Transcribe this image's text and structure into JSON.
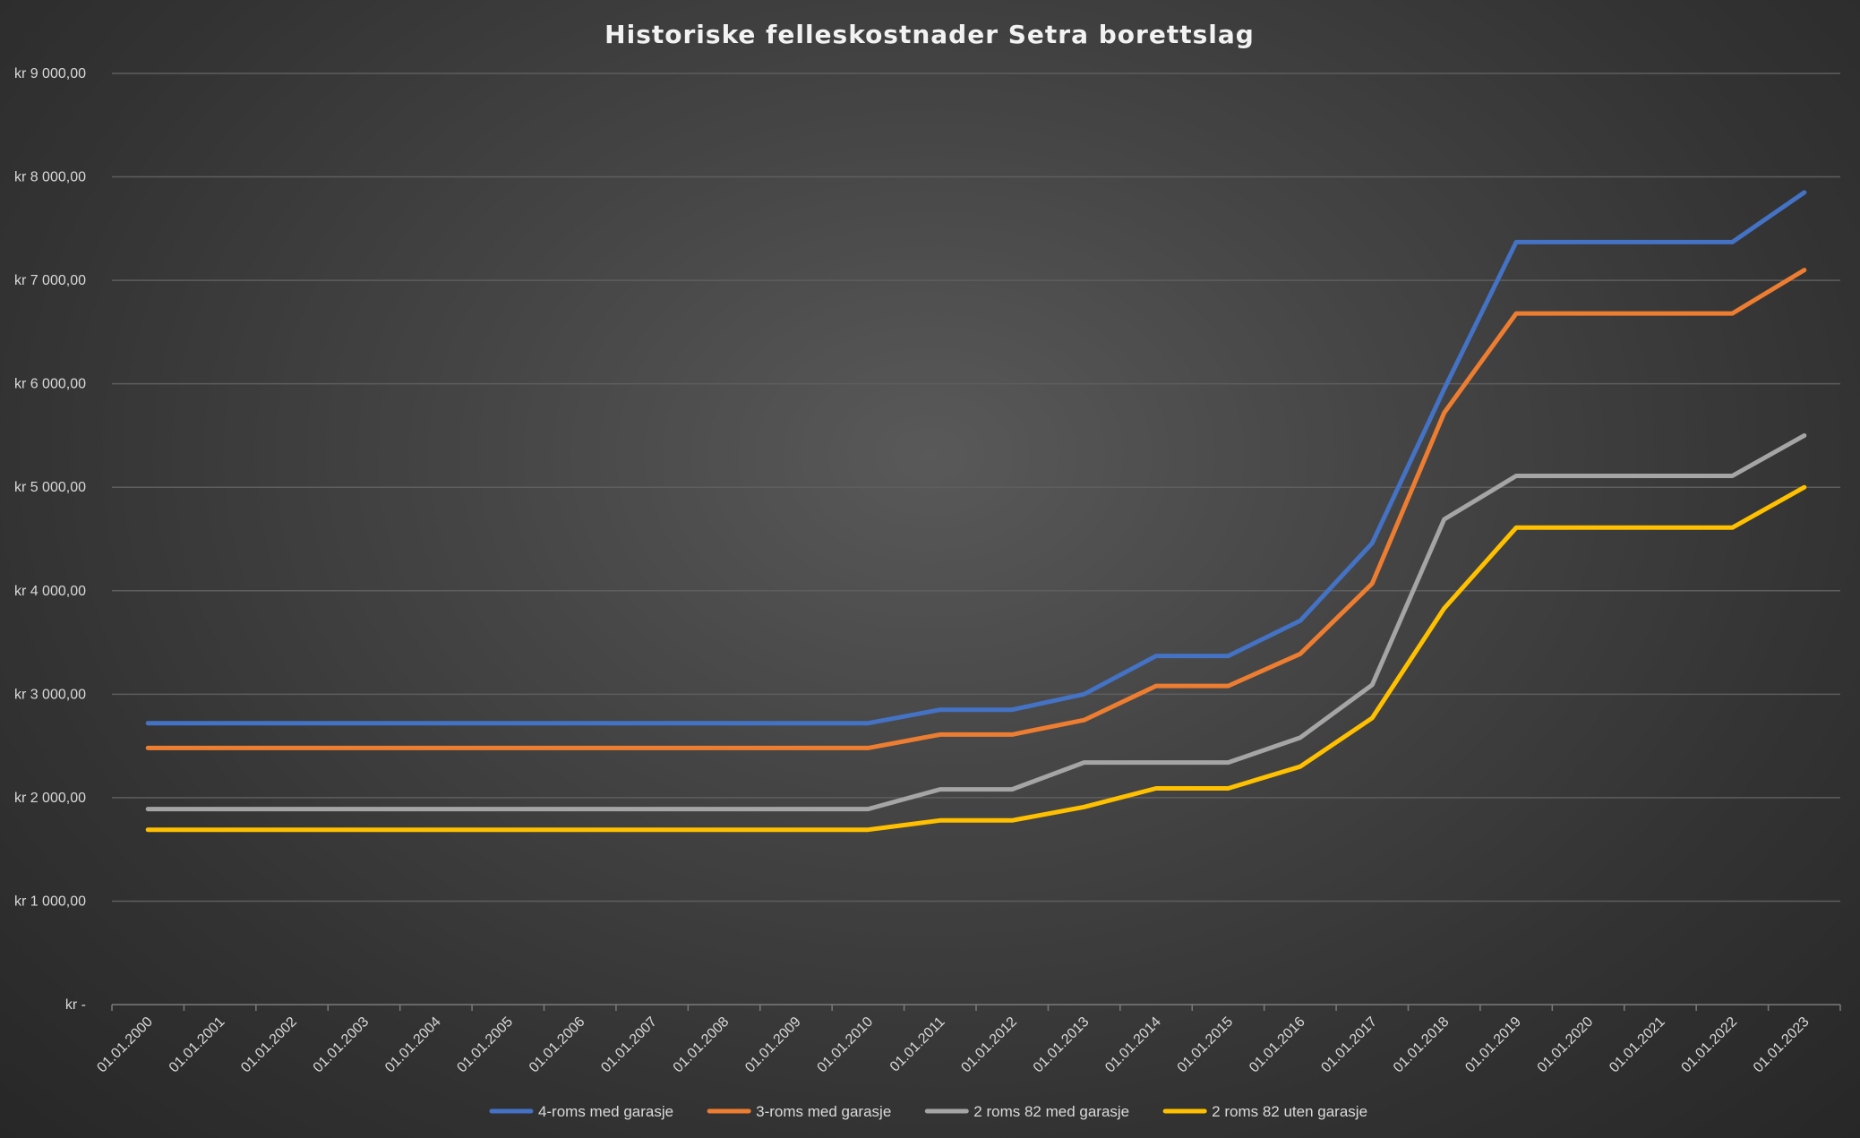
{
  "chart_data": {
    "type": "line",
    "title": "Historiske felleskostnader Setra borettslag",
    "xlabel": "",
    "ylabel": "",
    "categories": [
      "01.01.2000",
      "01.01.2001",
      "01.01.2002",
      "01.01.2003",
      "01.01.2004",
      "01.01.2005",
      "01.01.2006",
      "01.01.2007",
      "01.01.2008",
      "01.01.2009",
      "01.01.2010",
      "01.01.2011",
      "01.01.2012",
      "01.01.2013",
      "01.01.2014",
      "01.01.2015",
      "01.01.2016",
      "01.01.2017",
      "01.01.2018",
      "01.01.2019",
      "01.01.2020",
      "01.01.2021",
      "01.01.2022",
      "01.01.2023"
    ],
    "ylim": [
      0,
      9000
    ],
    "yticks": [
      0,
      1000,
      2000,
      3000,
      4000,
      5000,
      6000,
      7000,
      8000,
      9000
    ],
    "ytick_labels": [
      "kr -",
      "kr 1 000,00",
      "kr 2 000,00",
      "kr 3 000,00",
      "kr 4 000,00",
      "kr 5 000,00",
      "kr 6 000,00",
      "kr 7 000,00",
      "kr 8 000,00",
      "kr 9 000,00"
    ],
    "grid": true,
    "legend_position": "bottom",
    "series": [
      {
        "name": "4-roms med garasje",
        "color": "#4472c4",
        "values": [
          2720,
          2720,
          2720,
          2720,
          2720,
          2720,
          2720,
          2720,
          2720,
          2720,
          2720,
          2850,
          2850,
          3000,
          3370,
          3370,
          3710,
          4460,
          5950,
          7370,
          7370,
          7370,
          7370,
          7850
        ]
      },
      {
        "name": "3-roms med garasje",
        "color": "#ed7d31",
        "values": [
          2480,
          2480,
          2480,
          2480,
          2480,
          2480,
          2480,
          2480,
          2480,
          2480,
          2480,
          2610,
          2610,
          2750,
          3080,
          3080,
          3390,
          4070,
          5720,
          6680,
          6680,
          6680,
          6680,
          7100
        ]
      },
      {
        "name": "2 roms 82 med garasje",
        "color": "#a5a5a5",
        "values": [
          1890,
          1890,
          1890,
          1890,
          1890,
          1890,
          1890,
          1890,
          1890,
          1890,
          1890,
          2080,
          2080,
          2340,
          2340,
          2340,
          2580,
          3090,
          4690,
          5110,
          5110,
          5110,
          5110,
          5500
        ]
      },
      {
        "name": "2 roms 82 uten garasje",
        "color": "#ffc000",
        "values": [
          1690,
          1690,
          1690,
          1690,
          1690,
          1690,
          1690,
          1690,
          1690,
          1690,
          1690,
          1780,
          1780,
          1910,
          2090,
          2090,
          2300,
          2770,
          3830,
          4610,
          4610,
          4610,
          4610,
          5000
        ]
      }
    ]
  }
}
